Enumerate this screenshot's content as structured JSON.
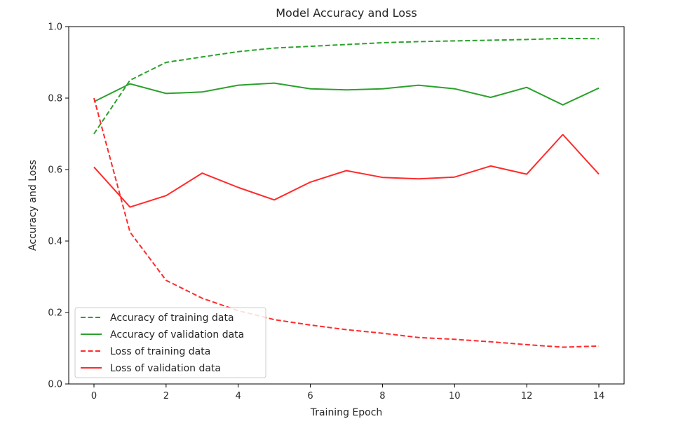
{
  "chart_data": {
    "type": "line",
    "title": "Model Accuracy and Loss",
    "xlabel": "Training Epoch",
    "ylabel": "Accuracy and Loss",
    "xlim": [
      -0.7,
      14.7
    ],
    "ylim": [
      0.0,
      1.0
    ],
    "xticks": [
      "0",
      "2",
      "4",
      "6",
      "8",
      "10",
      "12",
      "14"
    ],
    "yticks": [
      "0.0",
      "0.2",
      "0.4",
      "0.6",
      "0.8",
      "1.0"
    ],
    "grid": false,
    "legend_position": "lower-left",
    "x": [
      0,
      1,
      2,
      3,
      4,
      5,
      6,
      7,
      8,
      9,
      10,
      11,
      12,
      13,
      14
    ],
    "series": [
      {
        "name": "Accuracy of training data",
        "color": "#2ca02c",
        "style": "dashed",
        "values": [
          0.7,
          0.85,
          0.9,
          0.915,
          0.93,
          0.94,
          0.945,
          0.95,
          0.955,
          0.958,
          0.96,
          0.962,
          0.964,
          0.967,
          0.966
        ]
      },
      {
        "name": "Accuracy of validation data",
        "color": "#2ca02c",
        "style": "solid",
        "values": [
          0.79,
          0.84,
          0.813,
          0.817,
          0.836,
          0.842,
          0.826,
          0.823,
          0.826,
          0.836,
          0.826,
          0.802,
          0.83,
          0.781,
          0.828
        ]
      },
      {
        "name": "Loss of training data",
        "color": "#ff2a2a",
        "style": "dashed",
        "values": [
          0.8,
          0.425,
          0.29,
          0.24,
          0.205,
          0.18,
          0.165,
          0.152,
          0.142,
          0.13,
          0.125,
          0.118,
          0.11,
          0.103,
          0.106
        ]
      },
      {
        "name": "Loss of validation data",
        "color": "#ff2a2a",
        "style": "solid",
        "values": [
          0.607,
          0.495,
          0.527,
          0.59,
          0.55,
          0.515,
          0.565,
          0.597,
          0.578,
          0.574,
          0.579,
          0.61,
          0.587,
          0.698,
          0.587
        ]
      }
    ]
  }
}
